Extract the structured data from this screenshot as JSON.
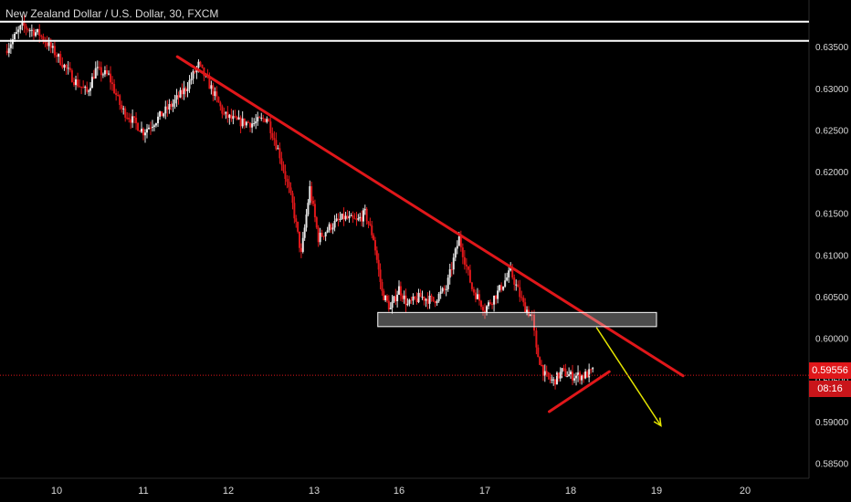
{
  "header": {
    "title": "New Zealand Dollar / U.S. Dollar, 30, FXCM"
  },
  "price_axis": {
    "last_price": "0.59556",
    "countdown": "08:16"
  },
  "colors": {
    "background": "#000000",
    "up_candle": "#e6e6e6",
    "down_candle": "#e0171a",
    "trendline": "#e0171a",
    "resistance": "#ffffff",
    "zone_fill": "#d9d9d9",
    "projection_arrow": "#e6e600",
    "axis_text": "#d9d9d9"
  },
  "chart_data": {
    "type": "candlestick",
    "title": "New Zealand Dollar / U.S. Dollar, 30, FXCM",
    "xlabel": "",
    "ylabel": "",
    "x_ticks": [
      "10",
      "11",
      "12",
      "13",
      "16",
      "17",
      "18",
      "19",
      "20"
    ],
    "y_ticks": [
      "0.63500",
      "0.63000",
      "0.62500",
      "0.62000",
      "0.61500",
      "0.61000",
      "0.60500",
      "0.60000",
      "0.59500",
      "0.59000",
      "0.58500"
    ],
    "ylim": [
      0.5832,
      0.6406
    ],
    "grid": false,
    "last_price": 0.59556,
    "series": [
      {
        "type": "candlestick",
        "path": [
          [
            9.4,
            0.6345
          ],
          [
            9.6,
            0.6375
          ],
          [
            9.8,
            0.6365
          ],
          [
            10.0,
            0.634
          ],
          [
            10.2,
            0.631
          ],
          [
            10.35,
            0.6295
          ],
          [
            10.45,
            0.6322
          ],
          [
            10.6,
            0.6315
          ],
          [
            10.75,
            0.6275
          ],
          [
            11.0,
            0.6248
          ],
          [
            11.15,
            0.6262
          ],
          [
            11.35,
            0.6282
          ],
          [
            11.5,
            0.63
          ],
          [
            11.65,
            0.6328
          ],
          [
            11.8,
            0.63
          ],
          [
            11.95,
            0.6268
          ],
          [
            12.1,
            0.626
          ],
          [
            12.3,
            0.6258
          ],
          [
            12.45,
            0.6265
          ],
          [
            12.6,
            0.622
          ],
          [
            12.75,
            0.616
          ],
          [
            12.85,
            0.61
          ],
          [
            12.95,
            0.618
          ],
          [
            13.05,
            0.612
          ],
          [
            13.2,
            0.6135
          ],
          [
            13.35,
            0.6145
          ],
          [
            13.5,
            0.614
          ],
          [
            13.6,
            0.615
          ],
          [
            13.7,
            0.612
          ],
          [
            13.8,
            0.6055
          ],
          [
            13.9,
            0.6035
          ],
          [
            14.0,
            0.606
          ],
          [
            14.1,
            0.604
          ],
          [
            14.25,
            0.605
          ],
          [
            14.4,
            0.6045
          ],
          [
            14.55,
            0.606
          ],
          [
            14.7,
            0.612
          ],
          [
            14.85,
            0.606
          ],
          [
            15.0,
            0.6035
          ],
          [
            15.15,
            0.6055
          ],
          [
            15.3,
            0.608
          ],
          [
            15.45,
            0.604
          ],
          [
            15.55,
            0.6025
          ],
          [
            15.6,
            0.5985
          ],
          [
            15.7,
            0.5955
          ],
          [
            15.8,
            0.5948
          ],
          [
            15.9,
            0.596
          ],
          [
            16.0,
            0.5955
          ],
          [
            16.15,
            0.5955
          ],
          [
            16.3,
            0.5962
          ]
        ]
      }
    ],
    "annotations": [
      {
        "type": "horizontal_line",
        "price": 0.638,
        "color": "#ffffff"
      },
      {
        "type": "horizontal_line",
        "price": 0.6357,
        "color": "#ffffff"
      },
      {
        "type": "trendline",
        "from": [
          11.4,
          0.6338
        ],
        "to": [
          17.3,
          0.5955
        ],
        "color": "#e0171a"
      },
      {
        "type": "trendline",
        "from": [
          15.75,
          0.5912
        ],
        "to": [
          16.45,
          0.596
        ],
        "color": "#e0171a"
      },
      {
        "type": "zone",
        "price_top": 0.6031,
        "price_bottom": 0.6014,
        "x_from": 13.75,
        "x_to": 17.0
      },
      {
        "type": "arrow",
        "from": [
          16.3,
          0.6013
        ],
        "to": [
          17.05,
          0.5895
        ],
        "color": "#e6e600"
      }
    ]
  }
}
